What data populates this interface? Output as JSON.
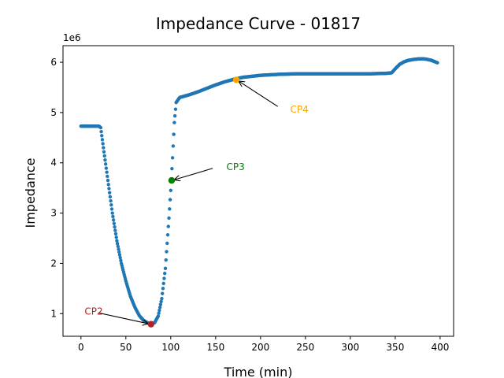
{
  "chart_data": {
    "type": "scatter",
    "title": "Impedance Curve - 01817",
    "xlabel": "Time (min)",
    "ylabel": "Impedance",
    "y_offset_label": "1e6",
    "xlim": [
      -20,
      415
    ],
    "ylim": [
      550000,
      6330000
    ],
    "x_ticks": [
      0,
      50,
      100,
      150,
      200,
      250,
      300,
      350,
      400
    ],
    "x_tick_labels": [
      "0",
      "50",
      "100",
      "150",
      "200",
      "250",
      "300",
      "350",
      "400"
    ],
    "y_ticks": [
      1000000,
      2000000,
      3000000,
      4000000,
      5000000,
      6000000
    ],
    "y_tick_labels": [
      "1",
      "2",
      "3",
      "4",
      "5",
      "6"
    ],
    "grid": false,
    "series": [
      {
        "color": "#1f77b4",
        "x": [
          0,
          20,
          22,
          25,
          30,
          35,
          40,
          45,
          50,
          55,
          60,
          65,
          70,
          75,
          78,
          82,
          86,
          90,
          94,
          98,
          100,
          102,
          104,
          106,
          110,
          120,
          130,
          140,
          150,
          160,
          170,
          180,
          190,
          200,
          210,
          220,
          240,
          260,
          280,
          300,
          320,
          340,
          346,
          350,
          355,
          360,
          365,
          370,
          375,
          380,
          385,
          390,
          397
        ],
        "y": [
          4730000,
          4730000,
          4700000,
          4300000,
          3650000,
          3000000,
          2450000,
          2000000,
          1650000,
          1350000,
          1130000,
          960000,
          860000,
          810000,
          790000,
          820000,
          950000,
          1300000,
          1900000,
          2900000,
          3450000,
          4100000,
          4800000,
          5200000,
          5300000,
          5350000,
          5410000,
          5480000,
          5550000,
          5610000,
          5660000,
          5700000,
          5720000,
          5740000,
          5750000,
          5760000,
          5770000,
          5770000,
          5770000,
          5770000,
          5770000,
          5780000,
          5790000,
          5870000,
          5960000,
          6010000,
          6040000,
          6055000,
          6065000,
          6070000,
          6060000,
          6040000,
          5990000
        ]
      }
    ],
    "annotations": [
      {
        "label": "CP2",
        "x": 78,
        "y": 790000,
        "text_x": 4,
        "text_y": 1040000,
        "color": "#b22222"
      },
      {
        "label": "CP3",
        "x": 101,
        "y": 3650000,
        "text_x": 162,
        "text_y": 3920000,
        "color": "#008000"
      },
      {
        "label": "CP4",
        "x": 173,
        "y": 5650000,
        "text_x": 233,
        "text_y": 5060000,
        "color": "#ffa500"
      }
    ]
  }
}
